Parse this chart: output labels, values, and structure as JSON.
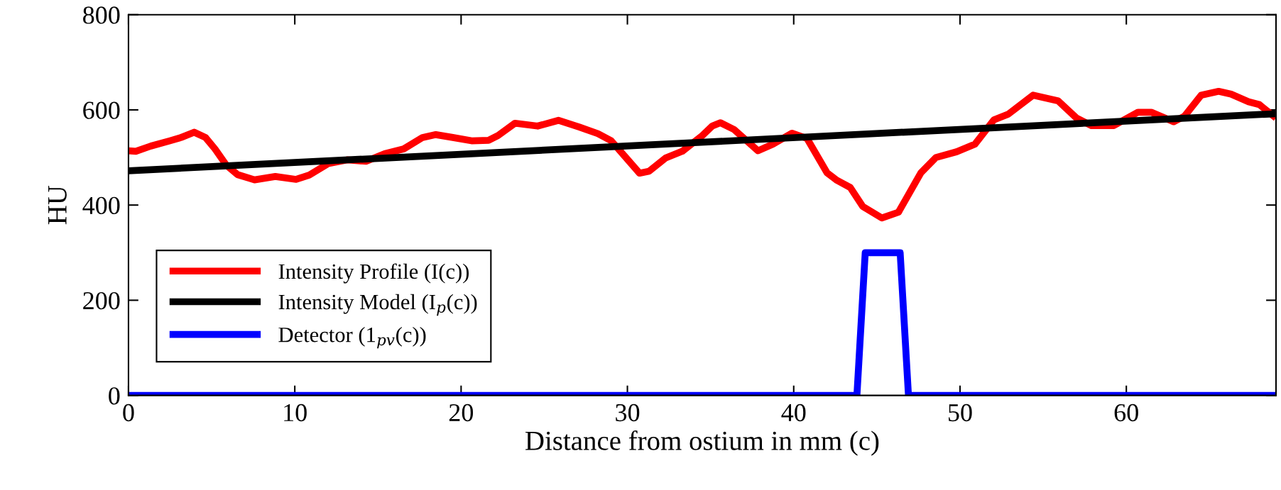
{
  "chart_data": {
    "type": "line",
    "xlabel": "Distance from ostium in mm (c)",
    "ylabel": "HU",
    "xlim": [
      0,
      69
    ],
    "xticks": [
      0,
      10,
      20,
      30,
      40,
      50,
      60
    ],
    "ylim": [
      0,
      800
    ],
    "yticks": [
      0,
      200,
      400,
      600,
      800
    ],
    "grid": false,
    "legend": "bottom left",
    "marker": "none",
    "line_style": "solid",
    "series": [
      {
        "name": "Intensity Profile (I(c))",
        "color": "#ff0000",
        "x": [
          0,
          0.44,
          1.34,
          2.48,
          3.16,
          3.95,
          4.63,
          5.2,
          5.88,
          6.56,
          7.58,
          8.83,
          10.08,
          10.87,
          12.0,
          13.14,
          14.28,
          15.41,
          16.55,
          17.68,
          18.48,
          19.5,
          20.63,
          21.65,
          22.22,
          23.24,
          24.6,
          25.85,
          27.1,
          28.23,
          29.03,
          29.93,
          30.73,
          31.3,
          32.3,
          33.3,
          34.5,
          35.1,
          35.6,
          36.4,
          37.85,
          38.75,
          39.9,
          40.8,
          42.0,
          42.6,
          43.4,
          44.15,
          45.3,
          46.3,
          47.65,
          48.55,
          49.8,
          50.9,
          52.04,
          52.9,
          54.4,
          55.9,
          57.0,
          57.9,
          59.25,
          60.7,
          61.5,
          62.85,
          63.5,
          64.5,
          65.55,
          66.3,
          67.35,
          68.0,
          69.0
        ],
        "values": [
          514,
          513,
          524,
          535,
          542,
          553,
          542,
          518,
          484,
          464,
          453,
          460,
          454,
          463,
          487,
          495,
          492,
          508,
          518,
          542,
          548,
          542,
          535,
          536,
          546,
          572,
          566,
          578,
          564,
          550,
          535,
          499,
          467,
          471,
          499,
          513,
          546,
          566,
          573,
          559,
          514,
          528,
          551,
          540,
          468,
          452,
          437,
          397,
          373,
          385,
          468,
          500,
          512,
          528,
          579,
          591,
          631,
          619,
          583,
          567,
          567,
          595,
          595,
          575,
          587,
          631,
          639,
          633,
          617,
          611,
          583
        ]
      },
      {
        "name": "Intensity Model (I$_{p}$(c))",
        "color": "#000000",
        "x": [
          0,
          69
        ],
        "values": [
          472,
          592
        ]
      },
      {
        "name": "Detector (1$_{pv}$(c))",
        "color": "#0000ff",
        "x": [
          0,
          43.8,
          44.3,
          46.4,
          46.9,
          69
        ],
        "values": [
          0,
          0,
          300,
          300,
          0,
          0
        ]
      }
    ]
  }
}
